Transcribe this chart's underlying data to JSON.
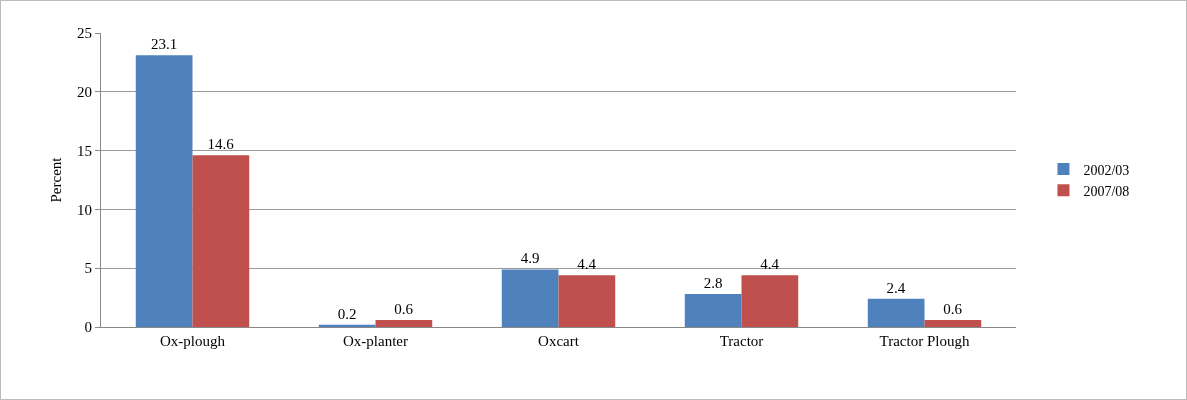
{
  "chart_data": {
    "type": "bar",
    "ylabel": "Percent",
    "categories": [
      "Ox-plough",
      "Ox-planter",
      "Oxcart",
      "Tractor",
      "Tractor Plough"
    ],
    "series": [
      {
        "name": "2002/03",
        "color": "#4f81bd",
        "values": [
          23.1,
          0.2,
          4.9,
          2.8,
          2.4
        ]
      },
      {
        "name": "2007/08",
        "color": "#c0504d",
        "values": [
          14.6,
          0.6,
          4.4,
          4.4,
          0.6
        ]
      }
    ],
    "ylim": [
      0,
      25
    ],
    "yticks": [
      0,
      5,
      10,
      15,
      20,
      25
    ],
    "grid": "y",
    "legend": "right",
    "data_labels": true
  }
}
